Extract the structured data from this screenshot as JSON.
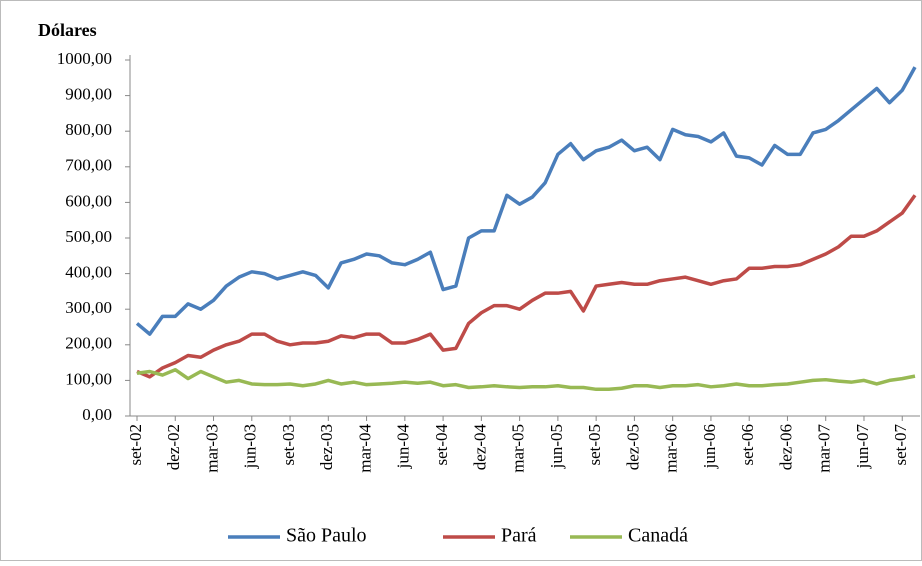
{
  "chart_data": {
    "type": "line",
    "y_label": "Dólares",
    "categories": [
      "set-02",
      null,
      null,
      "dez-02",
      null,
      null,
      "mar-03",
      null,
      null,
      "jun-03",
      null,
      null,
      "set-03",
      null,
      null,
      "dez-03",
      null,
      null,
      "mar-04",
      null,
      null,
      "jun-04",
      null,
      null,
      "set-04",
      null,
      null,
      "dez-04",
      null,
      null,
      "mar-05",
      null,
      null,
      "jun-05",
      null,
      null,
      "set-05",
      null,
      null,
      "dez-05",
      null,
      null,
      "mar-06",
      null,
      null,
      "jun-06",
      null,
      null,
      "set-06",
      null,
      null,
      "dez-06",
      null,
      null,
      "mar-07",
      null,
      null,
      "jun-07",
      null,
      null,
      "set-07",
      null
    ],
    "series": [
      {
        "name": "São Paulo",
        "color": "#4a7ebb",
        "values": [
          260,
          230,
          280,
          280,
          315,
          300,
          325,
          365,
          390,
          405,
          400,
          385,
          395,
          405,
          395,
          360,
          430,
          440,
          455,
          450,
          430,
          425,
          440,
          460,
          355,
          365,
          500,
          520,
          520,
          620,
          595,
          615,
          655,
          735,
          765,
          720,
          745,
          755,
          775,
          745,
          755,
          720,
          805,
          790,
          785,
          770,
          795,
          730,
          725,
          705,
          760,
          735,
          735,
          795,
          805,
          830,
          860,
          890,
          920,
          880,
          915,
          980
        ]
      },
      {
        "name": "Pará",
        "color": "#be4b48",
        "values": [
          125,
          110,
          135,
          150,
          170,
          165,
          185,
          200,
          210,
          230,
          230,
          210,
          200,
          205,
          205,
          210,
          225,
          220,
          230,
          230,
          205,
          205,
          215,
          230,
          185,
          190,
          260,
          290,
          310,
          310,
          300,
          325,
          345,
          345,
          350,
          295,
          365,
          370,
          375,
          370,
          370,
          380,
          385,
          390,
          380,
          370,
          380,
          385,
          415,
          415,
          420,
          420,
          425,
          440,
          455,
          475,
          505,
          505,
          520,
          545,
          570,
          620
        ]
      },
      {
        "name": "Canadá",
        "color": "#98b954",
        "values": [
          120,
          125,
          115,
          130,
          105,
          125,
          110,
          95,
          100,
          90,
          88,
          88,
          90,
          85,
          90,
          100,
          90,
          95,
          88,
          90,
          92,
          95,
          92,
          95,
          85,
          88,
          80,
          82,
          85,
          82,
          80,
          82,
          82,
          85,
          80,
          80,
          75,
          75,
          78,
          85,
          85,
          80,
          85,
          85,
          88,
          82,
          85,
          90,
          85,
          85,
          88,
          90,
          95,
          100,
          102,
          98,
          95,
          100,
          90,
          100,
          105,
          112
        ]
      }
    ],
    "ylim": [
      0,
      1000
    ],
    "yticks": [
      {
        "value": 0,
        "label": "0,00"
      },
      {
        "value": 100,
        "label": "100,00"
      },
      {
        "value": 200,
        "label": "200,00"
      },
      {
        "value": 300,
        "label": "300,00"
      },
      {
        "value": 400,
        "label": "400,00"
      },
      {
        "value": 500,
        "label": "500,00"
      },
      {
        "value": 600,
        "label": "600,00"
      },
      {
        "value": 700,
        "label": "700,00"
      },
      {
        "value": 800,
        "label": "800,00"
      },
      {
        "value": 900,
        "label": "900,00"
      },
      {
        "value": 1000,
        "label": "1000,00"
      }
    ],
    "legend": "bottom"
  }
}
